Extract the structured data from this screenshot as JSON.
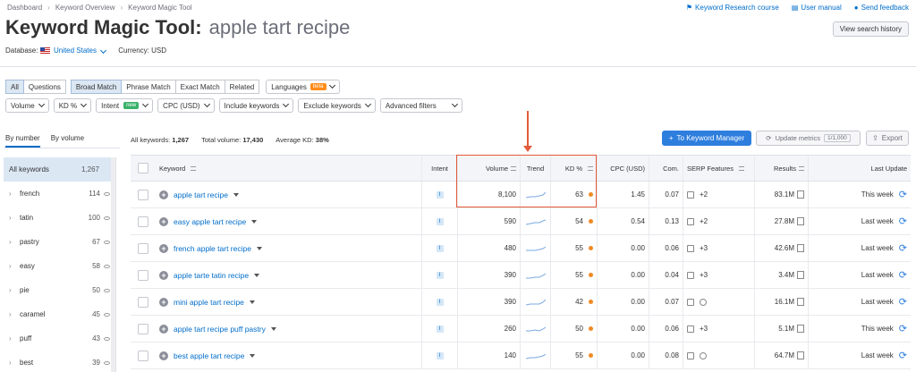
{
  "breadcrumb": [
    "Dashboard",
    "Keyword Overview",
    "Keyword Magic Tool"
  ],
  "top_links": {
    "course": "Keyword Research course",
    "manual": "User manual",
    "feedback": "Send feedback"
  },
  "title": {
    "tool": "Keyword Magic Tool:",
    "query": "apple tart recipe"
  },
  "view_history": "View search history",
  "database": {
    "label": "Database:",
    "value": "United States",
    "currency": "Currency: USD"
  },
  "match_tabs": [
    "All",
    "Questions",
    "Broad Match",
    "Phrase Match",
    "Exact Match",
    "Related"
  ],
  "languages": {
    "label": "Languages",
    "badge": "beta"
  },
  "filters": {
    "volume": "Volume",
    "kd": "KD %",
    "intent": "Intent",
    "intent_badge": "new",
    "cpc": "CPC (USD)",
    "include": "Include keywords",
    "exclude": "Exclude keywords",
    "advanced": "Advanced filters"
  },
  "left_tabs": [
    "By number",
    "By volume"
  ],
  "left_groups": [
    {
      "name": "All keywords",
      "count": "1,267"
    },
    {
      "name": "french",
      "count": "114"
    },
    {
      "name": "tatin",
      "count": "100"
    },
    {
      "name": "pastry",
      "count": "67"
    },
    {
      "name": "easy",
      "count": "58"
    },
    {
      "name": "pie",
      "count": "50"
    },
    {
      "name": "caramel",
      "count": "45"
    },
    {
      "name": "puff",
      "count": "43"
    },
    {
      "name": "best",
      "count": "39"
    }
  ],
  "summary": {
    "all_label": "All keywords:",
    "all_value": "1,267",
    "vol_label": "Total volume:",
    "vol_value": "17,430",
    "kd_label": "Average KD:",
    "kd_value": "38%"
  },
  "actions": {
    "keyword_manager": "To Keyword Manager",
    "update_metrics": "Update metrics",
    "update_count": "1/1,000",
    "export": "Export"
  },
  "table": {
    "headers": {
      "keyword": "Keyword",
      "intent": "Intent",
      "volume": "Volume",
      "trend": "Trend",
      "kd": "KD %",
      "cpc": "CPC (USD)",
      "com": "Com.",
      "serp": "SERP Features",
      "results": "Results",
      "last_update": "Last Update"
    },
    "rows": [
      {
        "keyword": "apple tart recipe",
        "intent": "I",
        "volume": "8,100",
        "kd": "63",
        "cpc": "1.45",
        "com": "0.07",
        "serp": "+2",
        "results": "83.1M",
        "last_update": "This week"
      },
      {
        "keyword": "easy apple tart recipe",
        "intent": "I",
        "volume": "590",
        "kd": "54",
        "cpc": "0.54",
        "com": "0.13",
        "serp": "+2",
        "results": "27.8M",
        "last_update": "Last week"
      },
      {
        "keyword": "french apple tart recipe",
        "intent": "I",
        "volume": "480",
        "kd": "55",
        "cpc": "0.00",
        "com": "0.06",
        "serp": "+3",
        "results": "42.6M",
        "last_update": "Last week"
      },
      {
        "keyword": "apple tarte tatin recipe",
        "intent": "I",
        "volume": "390",
        "kd": "55",
        "cpc": "0.00",
        "com": "0.04",
        "serp": "+3",
        "results": "3.4M",
        "last_update": "Last week"
      },
      {
        "keyword": "mini apple tart recipe",
        "intent": "I",
        "volume": "390",
        "kd": "42",
        "cpc": "0.00",
        "com": "0.07",
        "serp": "",
        "results": "16.1M",
        "last_update": "Last week"
      },
      {
        "keyword": "apple tart recipe puff pastry",
        "intent": "I",
        "volume": "260",
        "kd": "50",
        "cpc": "0.00",
        "com": "0.06",
        "serp": "+3",
        "results": "5.1M",
        "last_update": "This week"
      },
      {
        "keyword": "best apple tart recipe",
        "intent": "I",
        "volume": "140",
        "kd": "55",
        "cpc": "0.00",
        "com": "0.08",
        "serp": "",
        "results": "64.7M",
        "last_update": "Last week"
      }
    ]
  },
  "colors": {
    "accent": "#006dca",
    "primary_button": "#2e7ede",
    "kd_dot": "#f08a24",
    "highlight": "#e35a3a"
  }
}
